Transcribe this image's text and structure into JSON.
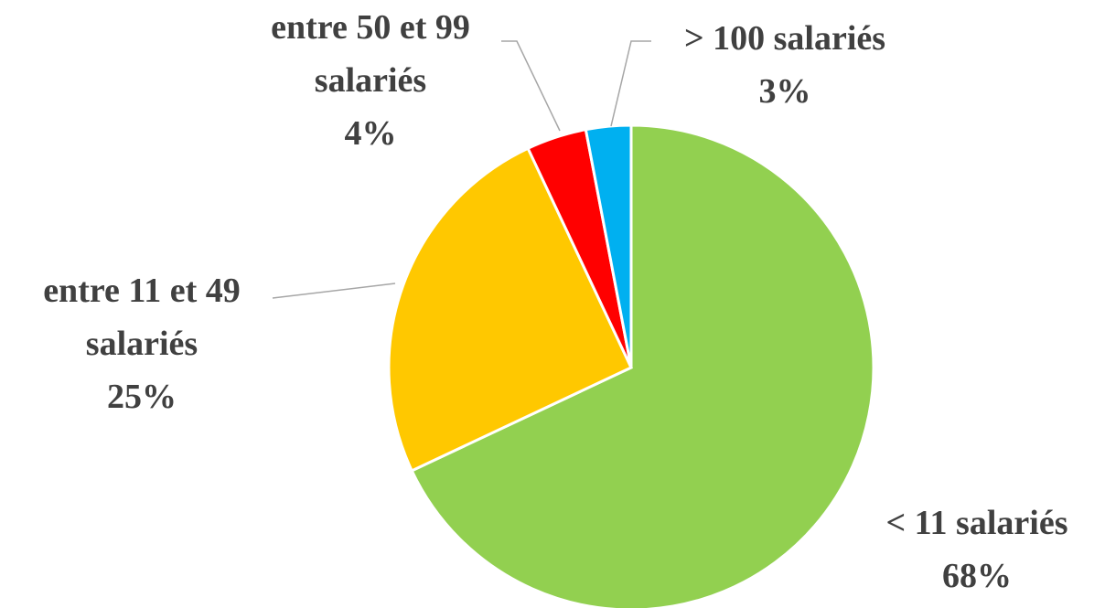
{
  "chart_data": {
    "type": "pie",
    "categories": [
      "< 11 salariés",
      "entre 11 et 49 salariés",
      "entre 50 et 99 salariés",
      "> 100 salariés"
    ],
    "values": [
      68,
      25,
      4,
      3
    ],
    "value_labels": [
      "68%",
      "25%",
      "4%",
      "3%"
    ],
    "colors": [
      "#92d050",
      "#ffc800",
      "#ff0000",
      "#00b0f0"
    ]
  }
}
